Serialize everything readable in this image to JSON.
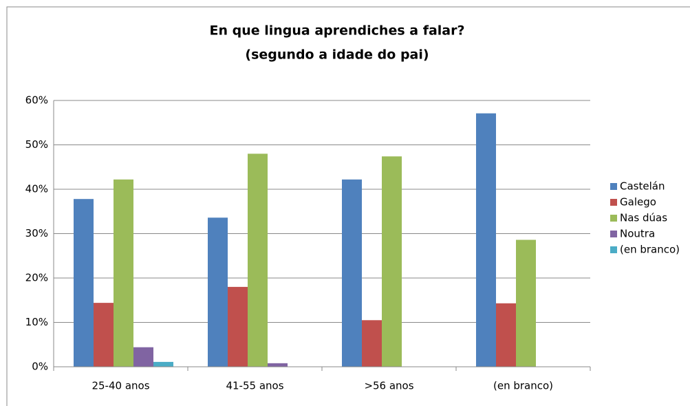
{
  "chart_data": {
    "type": "bar",
    "title": "En que lingua aprendiches a falar?",
    "subtitle": "(segundo a idade do pai)",
    "categories": [
      "25-40 anos",
      "41-55 anos",
      ">56 anos",
      "(en branco)"
    ],
    "series": [
      {
        "name": "Castelán",
        "color": "#4f81bd",
        "values": [
          37.8,
          33.6,
          42.2,
          57.1
        ]
      },
      {
        "name": "Galego",
        "color": "#c0504d",
        "values": [
          14.4,
          18,
          10.5,
          14.3
        ]
      },
      {
        "name": "Nas dúas",
        "color": "#9bbb59",
        "values": [
          42.2,
          48,
          47.4,
          28.6
        ]
      },
      {
        "name": "Noutra",
        "color": "#8064a2",
        "values": [
          4.4,
          0.8,
          0,
          0
        ]
      },
      {
        "name": "(en branco)",
        "color": "#4bacc6",
        "values": [
          1.1,
          0,
          0,
          0
        ]
      }
    ],
    "ylim": [
      0,
      60
    ],
    "yticks": [
      {
        "value": 0,
        "label": "0%"
      },
      {
        "value": 10,
        "label": "10%"
      },
      {
        "value": 20,
        "label": "20%"
      },
      {
        "value": 30,
        "label": "30%"
      },
      {
        "value": 40,
        "label": "40%"
      },
      {
        "value": 50,
        "label": "50%"
      },
      {
        "value": 60,
        "label": "60%"
      }
    ],
    "grid": true,
    "legend": "right"
  }
}
